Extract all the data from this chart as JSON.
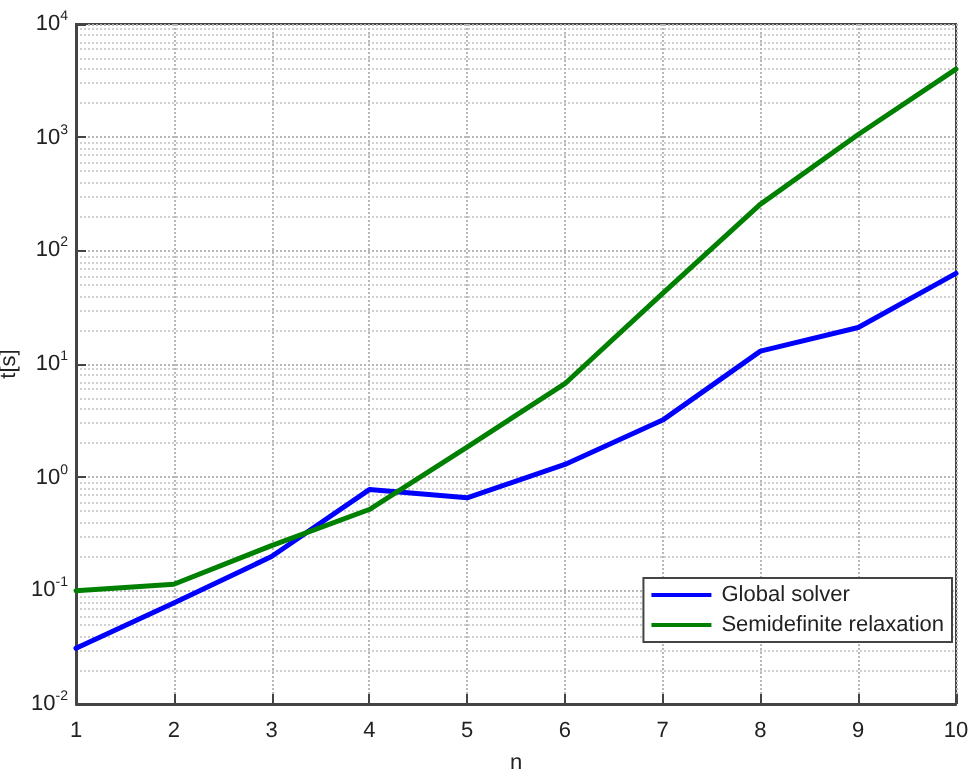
{
  "chart_data": {
    "type": "line",
    "xlabel": "n",
    "ylabel": "t[s]",
    "x": [
      1,
      2,
      3,
      4,
      5,
      6,
      7,
      8,
      9,
      10
    ],
    "series": [
      {
        "name": "Global solver",
        "color": "#0000ff",
        "values": [
          0.031,
          0.078,
          0.2,
          0.78,
          0.66,
          1.3,
          3.2,
          13,
          21,
          63
        ]
      },
      {
        "name": "Semidefinite relaxation",
        "color": "#008000",
        "values": [
          0.1,
          0.114,
          0.25,
          0.52,
          1.85,
          6.7,
          42,
          257,
          1060,
          4000
        ]
      }
    ],
    "xlim": [
      1,
      10
    ],
    "xticks": [
      1,
      2,
      3,
      4,
      5,
      6,
      7,
      8,
      9,
      10
    ],
    "ylim": [
      0.01,
      10000
    ],
    "yticks": [
      {
        "value": 0.01,
        "label": "10$^{-2}$"
      },
      {
        "value": 0.1,
        "label": "10$^{-1}$"
      },
      {
        "value": 1,
        "label": "10$^{0}$"
      },
      {
        "value": 10,
        "label": "10$^{1}$"
      },
      {
        "value": 100,
        "label": "10$^{2}$"
      },
      {
        "value": 1000,
        "label": "10$^{3}$"
      },
      {
        "value": 10000,
        "label": "10$^{4}$"
      }
    ],
    "log": true,
    "grid": true,
    "legend": "bottom right",
    "marker": "none",
    "line_style": "solid"
  }
}
